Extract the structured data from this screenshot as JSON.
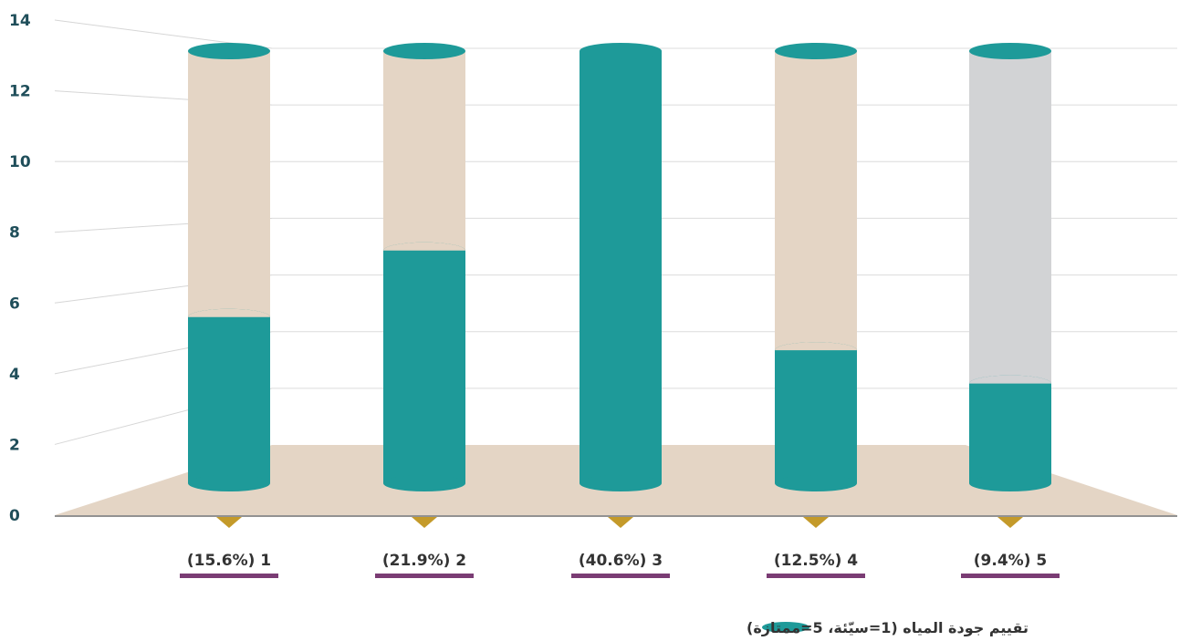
{
  "chart_data": {
    "type": "bar",
    "categories": [
      "(15.6%) 1",
      "(21.9%) 2",
      "(40.6%) 3",
      "(12.5%) 4",
      "(9.4%) 5"
    ],
    "series": [
      {
        "name": "تقييم جودة المياه (1=سيّئة، 5=ممتازة)",
        "values": [
          5,
          7,
          13,
          4,
          3
        ],
        "color": "#1e9a99"
      }
    ],
    "max_value": 13,
    "ylim": [
      0,
      14
    ],
    "yticks": [
      0,
      2,
      4,
      6,
      8,
      10,
      12,
      14
    ],
    "legend_position": "bottom-center",
    "grid": true,
    "colors": {
      "value": "#1e9a99",
      "remainder": "#e4d5c5",
      "remainder_last": "#d2d3d5",
      "floor": "#e4d5c5",
      "label_underline": "#7a3c74",
      "marker": "#c49a2a",
      "tick_text": "#1f4e5a"
    }
  }
}
